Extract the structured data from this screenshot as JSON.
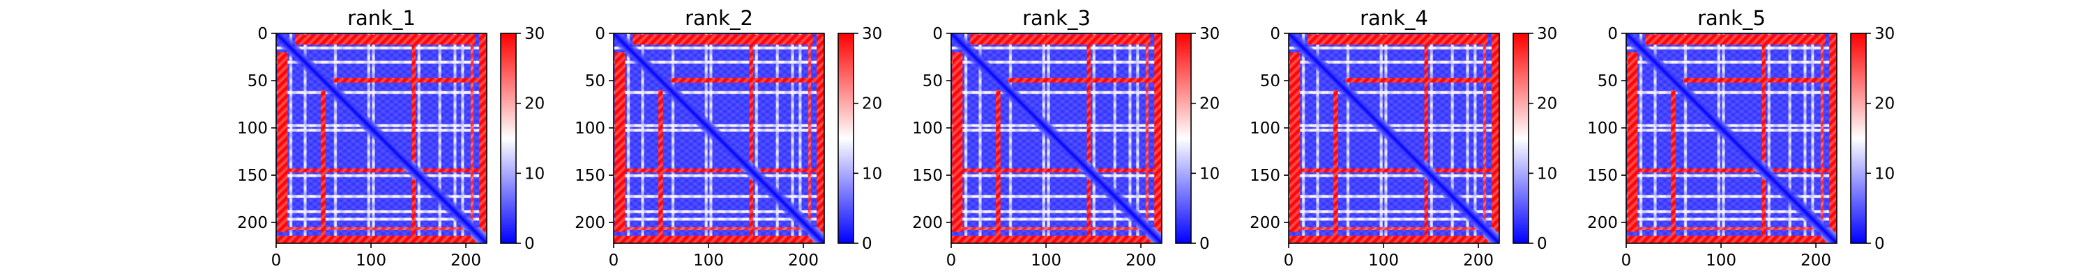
{
  "chart_data": {
    "type": "heatmap",
    "colormap": [
      "#0000ff",
      "#ffffff",
      "#ff0000"
    ],
    "color_range": [
      0,
      30
    ],
    "colorbar_ticks": [
      0,
      10,
      20,
      30
    ],
    "x_ticks": [
      0,
      100,
      200
    ],
    "y_ticks": [
      0,
      50,
      100,
      150,
      200
    ],
    "xlim": [
      0,
      222
    ],
    "ylim": [
      222,
      0
    ],
    "grid": false,
    "panels": [
      {
        "title": "rank_1"
      },
      {
        "title": "rank_2"
      },
      {
        "title": "rank_3"
      },
      {
        "title": "rank_4"
      },
      {
        "title": "rank_5"
      }
    ],
    "matrix": {
      "size": 222,
      "diagonal_value": 0,
      "background_value": 4,
      "red_bands": [
        {
          "range": [
            1,
            12
          ],
          "value": 30,
          "span": [
            20,
            210
          ]
        },
        {
          "range": [
            47,
            52
          ],
          "value": 30,
          "span": [
            60,
            222
          ]
        },
        {
          "range": [
            143,
            147
          ],
          "value": 30,
          "span": [
            0,
            222
          ]
        },
        {
          "range": [
            205,
            208
          ],
          "value": 28,
          "span": [
            0,
            222
          ]
        },
        {
          "range": [
            214,
            222
          ],
          "value": 30,
          "span": [
            0,
            222
          ]
        }
      ],
      "white_bands": [
        15,
        30,
        62,
        97,
        102,
        150,
        172,
        188,
        196
      ]
    }
  }
}
